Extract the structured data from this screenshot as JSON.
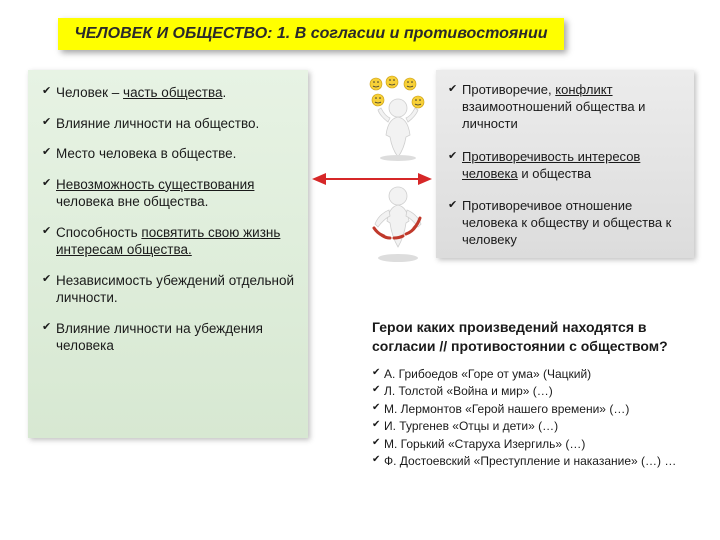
{
  "title": "ЧЕЛОВЕК И ОБЩЕСТВО: 1. В согласии и противостоянии",
  "left": {
    "items": [
      {
        "pre": "Человек – ",
        "u": "часть общества",
        "post": "."
      },
      {
        "pre": "Влияние личности на общество.",
        "u": "",
        "post": ""
      },
      {
        "pre": "Место человека в обществе.",
        "u": "",
        "post": ""
      },
      {
        "pre": "",
        "u": "Невозможность существования",
        "post": " человека вне общества."
      },
      {
        "pre": "Способность ",
        "u": "посвятить свою жизнь интересам общества.",
        "post": ""
      },
      {
        "pre": "Независимость убеждений отдельной личности.",
        "u": "",
        "post": ""
      },
      {
        "pre": "Влияние личности на убеждения человека",
        "u": "",
        "post": ""
      }
    ]
  },
  "right": {
    "items": [
      {
        "pre": "Противоречие, ",
        "u": "конфликт",
        "post": " взаимоотношений общества и личности"
      },
      {
        "pre": "",
        "u": "Противоречивость интересов человека",
        "post": " и общества"
      },
      {
        "pre": "Противоречивое отношение человека к обществу и общества к человеку",
        "u": "",
        "post": ""
      }
    ]
  },
  "question": "Герои каких произведений находятся в согласии // противостоянии с обществом?",
  "works": [
    "А. Грибоедов «Горе от ума» (Чацкий)",
    "Л. Толстой «Война и мир» (…)",
    "М. Лермонтов «Герой нашего времени» (…)",
    "И. Тургенев «Отцы и дети» (…)",
    "М. Горький «Старуха Изергиль» (…)",
    "Ф. Достоевский «Преступление и наказание» (…) …"
  ],
  "colors": {
    "banner_bg": "#ffff00",
    "left_bg_top": "#e7f3e4",
    "left_bg_bot": "#d7e8d2",
    "right_bg_top": "#ececec",
    "right_bg_bot": "#dcdcdc",
    "arrow": "#d62728",
    "text": "#1a1a1a"
  }
}
